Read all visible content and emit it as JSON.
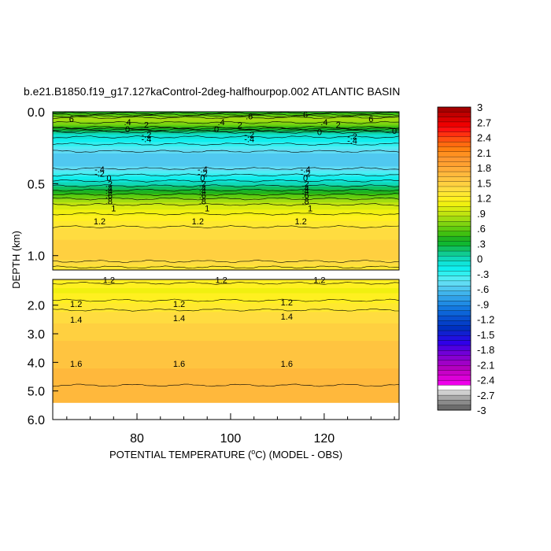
{
  "chart_data": {
    "type": "heatmap",
    "title": "b.e21.B1850.f19_g17.127kaControl-2deg-halfhourpop.002 ATLANTIC BASIN",
    "xlabel": "POTENTIAL TEMPERATURE (",
    "xlabel_sup": "o",
    "xlabel_tail": "C) (MODEL - OBS)",
    "ylabel": "DEPTH (km)",
    "xlim": [
      62,
      136
    ],
    "x_ticks": [
      80,
      100,
      120
    ],
    "x_tick_labels": [
      "80",
      "100",
      "120"
    ],
    "upper_panel": {
      "ylim": [
        0.0,
        1.1
      ],
      "y_ticks": [
        0.0,
        0.5,
        1.0
      ],
      "y_tick_labels": [
        "0.0",
        "0.5",
        "1.0"
      ]
    },
    "lower_panel": {
      "ylim": [
        1.1,
        6.0
      ],
      "y_ticks": [
        2.0,
        3.0,
        4.0,
        5.0,
        6.0
      ],
      "y_tick_labels": [
        "2.0",
        "3.0",
        "4.0",
        "5.0",
        "6.0"
      ]
    },
    "depth_profile": [
      {
        "depth": 0.0,
        "value": 0.3
      },
      {
        "depth": 0.05,
        "value": 0.8
      },
      {
        "depth": 0.1,
        "value": 0.6
      },
      {
        "depth": 0.15,
        "value": 0.0
      },
      {
        "depth": 0.2,
        "value": -0.2
      },
      {
        "depth": 0.25,
        "value": -0.4
      },
      {
        "depth": 0.3,
        "value": -0.6
      },
      {
        "depth": 0.37,
        "value": -0.6
      },
      {
        "depth": 0.42,
        "value": -0.4
      },
      {
        "depth": 0.46,
        "value": -0.2
      },
      {
        "depth": 0.5,
        "value": 0.0
      },
      {
        "depth": 0.53,
        "value": 0.2
      },
      {
        "depth": 0.56,
        "value": 0.4
      },
      {
        "depth": 0.59,
        "value": 0.6
      },
      {
        "depth": 0.62,
        "value": 0.8
      },
      {
        "depth": 0.67,
        "value": 1.0
      },
      {
        "depth": 0.75,
        "value": 1.2
      },
      {
        "depth": 0.85,
        "value": 1.4
      },
      {
        "depth": 1.0,
        "value": 1.5
      },
      {
        "depth": 1.1,
        "value": 1.25
      },
      {
        "depth": 1.5,
        "value": 1.1
      },
      {
        "depth": 2.0,
        "value": 1.25
      },
      {
        "depth": 2.5,
        "value": 1.4
      },
      {
        "depth": 3.0,
        "value": 1.5
      },
      {
        "depth": 4.0,
        "value": 1.6
      },
      {
        "depth": 5.0,
        "value": 1.7
      },
      {
        "depth": 5.4,
        "value": 1.7
      }
    ],
    "depth_data_limit": 5.4,
    "contour_labels": [
      {
        "text": "6",
        "x": 66,
        "depth": 0.05
      },
      {
        "text": ".4",
        "x": 78,
        "depth": 0.07
      },
      {
        "text": "2",
        "x": 82,
        "depth": 0.09
      },
      {
        "text": "0",
        "x": 78,
        "depth": 0.12
      },
      {
        "text": "-.2",
        "x": 82,
        "depth": 0.16
      },
      {
        "text": "-.4",
        "x": 82,
        "depth": 0.19
      },
      {
        "text": ".6",
        "x": 104,
        "depth": 0.03
      },
      {
        "text": ".4",
        "x": 98,
        "depth": 0.07
      },
      {
        "text": "2",
        "x": 102,
        "depth": 0.09
      },
      {
        "text": "0",
        "x": 97,
        "depth": 0.12
      },
      {
        "text": "-.2",
        "x": 104,
        "depth": 0.16
      },
      {
        "text": "-.4",
        "x": 104,
        "depth": 0.19
      },
      {
        "text": "6",
        "x": 116,
        "depth": 0.02
      },
      {
        "text": ".4",
        "x": 120,
        "depth": 0.07
      },
      {
        "text": "2",
        "x": 123,
        "depth": 0.09
      },
      {
        "text": "6",
        "x": 130,
        "depth": 0.05
      },
      {
        "text": "0",
        "x": 119,
        "depth": 0.14
      },
      {
        "text": "-.2",
        "x": 126,
        "depth": 0.17
      },
      {
        "text": "-.4",
        "x": 126,
        "depth": 0.2
      },
      {
        "text": "0",
        "x": 136,
        "depth": 0.13
      },
      {
        "text": "-.4",
        "x": 72,
        "depth": 0.4
      },
      {
        "text": "-.2",
        "x": 72,
        "depth": 0.43
      },
      {
        "text": "0",
        "x": 74,
        "depth": 0.46
      },
      {
        "text": ".2",
        "x": 74,
        "depth": 0.5
      },
      {
        "text": ".4",
        "x": 74,
        "depth": 0.53
      },
      {
        "text": ".4",
        "x": 74,
        "depth": 0.55
      },
      {
        "text": ".6",
        "x": 74,
        "depth": 0.58
      },
      {
        "text": ".8",
        "x": 74,
        "depth": 0.62
      },
      {
        "text": "1",
        "x": 75,
        "depth": 0.67
      },
      {
        "text": "1.2",
        "x": 72,
        "depth": 0.76
      },
      {
        "text": "-.4",
        "x": 94,
        "depth": 0.4
      },
      {
        "text": "-.2",
        "x": 94,
        "depth": 0.43
      },
      {
        "text": "0",
        "x": 94,
        "depth": 0.46
      },
      {
        "text": ".2",
        "x": 94,
        "depth": 0.5
      },
      {
        "text": ".4",
        "x": 94,
        "depth": 0.53
      },
      {
        "text": ".4",
        "x": 94,
        "depth": 0.55
      },
      {
        "text": ".6",
        "x": 94,
        "depth": 0.58
      },
      {
        "text": ".8",
        "x": 94,
        "depth": 0.62
      },
      {
        "text": "1",
        "x": 95,
        "depth": 0.67
      },
      {
        "text": "1.2",
        "x": 93,
        "depth": 0.76
      },
      {
        "text": "-.4",
        "x": 116,
        "depth": 0.4
      },
      {
        "text": "-.2",
        "x": 116,
        "depth": 0.43
      },
      {
        "text": "0",
        "x": 116,
        "depth": 0.46
      },
      {
        "text": ".2",
        "x": 116,
        "depth": 0.5
      },
      {
        "text": ".4",
        "x": 116,
        "depth": 0.53
      },
      {
        "text": ".4",
        "x": 116,
        "depth": 0.55
      },
      {
        "text": ".6",
        "x": 116,
        "depth": 0.58
      },
      {
        "text": ".8",
        "x": 116,
        "depth": 0.62
      },
      {
        "text": "1",
        "x": 117,
        "depth": 0.67
      },
      {
        "text": "1.2",
        "x": 115,
        "depth": 0.76
      },
      {
        "text": "1.2",
        "x": 74,
        "depth": 1.12
      },
      {
        "text": "1.2",
        "x": 98,
        "depth": 1.12
      },
      {
        "text": "1.2",
        "x": 119,
        "depth": 1.12
      },
      {
        "text": "1.2",
        "x": 67,
        "depth": 1.95
      },
      {
        "text": "1.2",
        "x": 89,
        "depth": 1.95
      },
      {
        "text": "1.2",
        "x": 112,
        "depth": 1.9
      },
      {
        "text": "1.4",
        "x": 67,
        "depth": 2.5
      },
      {
        "text": "1.4",
        "x": 89,
        "depth": 2.45
      },
      {
        "text": "1.4",
        "x": 112,
        "depth": 2.4
      },
      {
        "text": "1.6",
        "x": 67,
        "depth": 4.05
      },
      {
        "text": "1.6",
        "x": 89,
        "depth": 4.05
      },
      {
        "text": "1.6",
        "x": 112,
        "depth": 4.05
      }
    ],
    "colorbar": {
      "min": -3,
      "max": 3,
      "tick_values": [
        3,
        2.7,
        2.4,
        2.1,
        1.8,
        1.5,
        1.2,
        0.9,
        0.6,
        0.3,
        0,
        -0.3,
        -0.6,
        -0.9,
        -1.2,
        -1.5,
        -1.8,
        -2.1,
        -2.4,
        -2.7,
        -3
      ],
      "tick_labels": [
        "3",
        "2.7",
        "2.4",
        "2.1",
        "1.8",
        "1.5",
        "1.2",
        ".9",
        ".6",
        ".3",
        "0",
        "-.3",
        "-.6",
        "-.9",
        "-1.2",
        "-1.5",
        "-1.8",
        "-2.1",
        "-2.4",
        "-2.7",
        "-3"
      ],
      "colors_top_to_bottom": [
        "#a50000",
        "#c00000",
        "#d80000",
        "#ee0000",
        "#ff1010",
        "#ff3010",
        "#ff5010",
        "#ff6a10",
        "#ff8010",
        "#ff9020",
        "#ff9830",
        "#ffa030",
        "#ffac38",
        "#ffb83c",
        "#ffc440",
        "#ffd040",
        "#ffdc40",
        "#ffe830",
        "#fff020",
        "#f0f010",
        "#d8ec10",
        "#c0e410",
        "#a0dc10",
        "#80d410",
        "#60cc10",
        "#40c010",
        "#20b420",
        "#10b830",
        "#10c060",
        "#10cc90",
        "#10d8b8",
        "#10e4d8",
        "#10eeee",
        "#30f0f0",
        "#50ecf4",
        "#60dcf4",
        "#50c8f0",
        "#40b4ec",
        "#30a0e8",
        "#208ce4",
        "#1478e0",
        "#0c64d8",
        "#0850d0",
        "#0440c8",
        "#0030c0",
        "#1020d0",
        "#2010e0",
        "#3000e8",
        "#5000e0",
        "#7000d8",
        "#8800d0",
        "#a000c8",
        "#b400c0",
        "#c800c8",
        "#dc00d8",
        "#ee00ea",
        "#ffffff",
        "#cfcfcf",
        "#a8a8a8",
        "#8a8a8a",
        "#6c6c6c"
      ]
    }
  }
}
